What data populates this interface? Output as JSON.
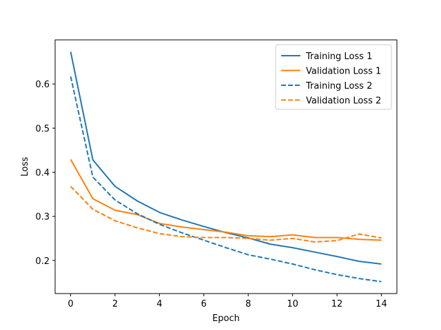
{
  "chart_data": {
    "type": "line",
    "title": "",
    "xlabel": "Epoch",
    "ylabel": "Loss",
    "xlim": [
      -0.7,
      14.7
    ],
    "ylim": [
      0.125,
      0.7
    ],
    "x_ticks": [
      0,
      2,
      4,
      6,
      8,
      10,
      12,
      14
    ],
    "y_ticks": [
      0.2,
      0.3,
      0.4,
      0.5,
      0.6
    ],
    "y_tick_labels": [
      "0.2",
      "0.3",
      "0.4",
      "0.5",
      "0.6"
    ],
    "grid": false,
    "legend_position": "top-right",
    "x": [
      0,
      1,
      2,
      3,
      4,
      5,
      6,
      7,
      8,
      9,
      10,
      11,
      12,
      13,
      14
    ],
    "series": [
      {
        "name": "Training Loss 1",
        "color": "#1f77b4",
        "linestyle": "solid",
        "values": [
          0.673,
          0.428,
          0.368,
          0.335,
          0.309,
          0.292,
          0.277,
          0.263,
          0.251,
          0.237,
          0.229,
          0.219,
          0.209,
          0.198,
          0.192
        ]
      },
      {
        "name": "Validation Loss 1",
        "color": "#ff7f0e",
        "linestyle": "solid",
        "values": [
          0.429,
          0.34,
          0.314,
          0.304,
          0.284,
          0.276,
          0.27,
          0.264,
          0.256,
          0.254,
          0.258,
          0.252,
          0.252,
          0.248,
          0.246
        ]
      },
      {
        "name": "Training Loss 2",
        "color": "#1f77b4",
        "linestyle": "dashed",
        "values": [
          0.617,
          0.389,
          0.337,
          0.306,
          0.282,
          0.263,
          0.246,
          0.229,
          0.213,
          0.203,
          0.192,
          0.179,
          0.168,
          0.159,
          0.152
        ]
      },
      {
        "name": "Validation Loss 2",
        "color": "#ff7f0e",
        "linestyle": "dashed",
        "values": [
          0.368,
          0.316,
          0.29,
          0.274,
          0.261,
          0.254,
          0.252,
          0.252,
          0.25,
          0.246,
          0.25,
          0.242,
          0.245,
          0.26,
          0.251
        ]
      }
    ]
  }
}
